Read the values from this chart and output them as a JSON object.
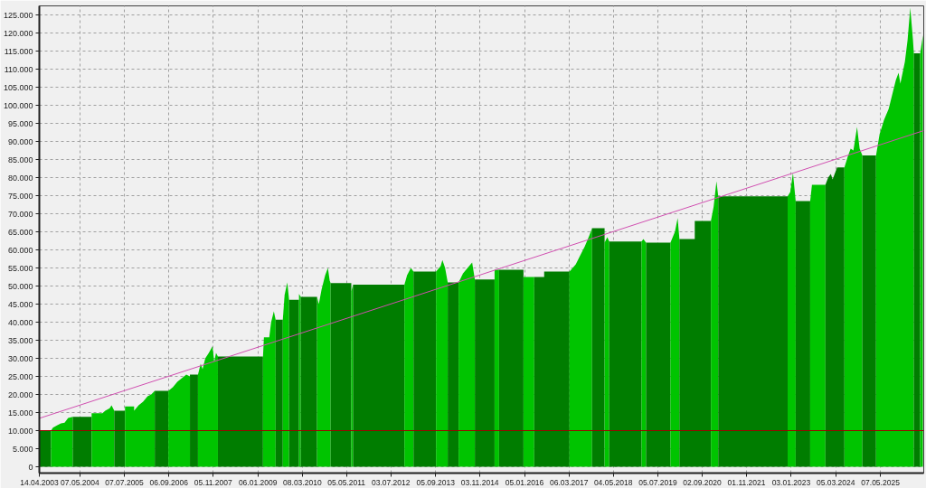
{
  "chart_data": {
    "type": "area",
    "xlim": [
      "2003-04-14",
      "2026-06-26"
    ],
    "ylim": [
      -1750,
      127500
    ],
    "xticks": [
      {
        "value": "2003-04-14",
        "label": "14.04.2003"
      },
      {
        "value": "2004-05-07",
        "label": "07.05.2004"
      },
      {
        "value": "2005-07-07",
        "label": "07.07.2005"
      },
      {
        "value": "2006-09-06",
        "label": "06.09.2006"
      },
      {
        "value": "2007-11-05",
        "label": "05.11.2007"
      },
      {
        "value": "2009-01-06",
        "label": "06.01.2009"
      },
      {
        "value": "2010-03-08",
        "label": "08.03.2010"
      },
      {
        "value": "2011-05-05",
        "label": "05.05.2011"
      },
      {
        "value": "2012-07-03",
        "label": "03.07.2012"
      },
      {
        "value": "2013-09-05",
        "label": "05.09.2013"
      },
      {
        "value": "2014-11-03",
        "label": "03.11.2014"
      },
      {
        "value": "2016-01-05",
        "label": "05.01.2016"
      },
      {
        "value": "2017-03-06",
        "label": "06.03.2017"
      },
      {
        "value": "2018-05-04",
        "label": "04.05.2018"
      },
      {
        "value": "2019-07-05",
        "label": "05.07.2019"
      },
      {
        "value": "2020-09-02",
        "label": "02.09.2020"
      },
      {
        "value": "2021-11-01",
        "label": "01.11.2021"
      },
      {
        "value": "2023-01-03",
        "label": "03.01.2023"
      },
      {
        "value": "2024-03-05",
        "label": "05.03.2024"
      },
      {
        "value": "2025-05-07",
        "label": "07.05.2025"
      }
    ],
    "yticks": [
      0,
      {
        "value": 5000,
        "label": "5.000"
      },
      {
        "value": 10000,
        "label": "10.000"
      },
      {
        "value": 15000,
        "label": "15.000"
      },
      {
        "value": 20000,
        "label": "20.000"
      },
      {
        "value": 25000,
        "label": "25.000"
      },
      {
        "value": 30000,
        "label": "30.000"
      },
      {
        "value": 35000,
        "label": "35.000"
      },
      {
        "value": 40000,
        "label": "40.000"
      },
      {
        "value": 45000,
        "label": "45.000"
      },
      {
        "value": 50000,
        "label": "50.000"
      },
      {
        "value": 55000,
        "label": "55.000"
      },
      {
        "value": 60000,
        "label": "60.000"
      },
      {
        "value": 65000,
        "label": "65.000"
      },
      {
        "value": 70000,
        "label": "70.000"
      },
      {
        "value": 75000,
        "label": "75.000"
      },
      {
        "value": 80000,
        "label": "80.000"
      },
      {
        "value": 85000,
        "label": "85.000"
      },
      {
        "value": 90000,
        "label": "90.000"
      },
      {
        "value": 95000,
        "label": "95.000"
      },
      {
        "value": 100000,
        "label": "100.000"
      },
      {
        "value": 105000,
        "label": "105.000"
      },
      {
        "value": 110000,
        "label": "110.000"
      },
      {
        "value": 115000,
        "label": "115.000"
      },
      {
        "value": 120000,
        "label": "120.000"
      },
      {
        "value": 125000,
        "label": "125.000"
      }
    ],
    "grid": true,
    "ref_lines": [
      {
        "axis": "y",
        "value": 10000,
        "color": "#a00000"
      }
    ],
    "series": [
      {
        "color": "#007d00",
        "x": [
          "2003-04-14",
          "2003-08-04"
        ],
        "values": [
          10000,
          10000
        ]
      },
      {
        "color": "#00c400",
        "x": [
          "2003-08-04",
          "2003-08-22",
          "2003-10-04",
          "2003-11-07",
          "2003-12-12",
          "2004-01-15",
          "2004-02-28"
        ],
        "values": [
          10000,
          10800,
          11500,
          12000,
          12200,
          13500,
          13800
        ]
      },
      {
        "color": "#007d00",
        "x": [
          "2004-02-28",
          "2004-08-27"
        ],
        "values": [
          13800,
          13800
        ]
      },
      {
        "color": "#00c400",
        "x": [
          "2004-08-27",
          "2004-12-09",
          "2005-01-04",
          "2005-02-16",
          "2005-03-06",
          "2005-04-01"
        ],
        "values": [
          14800,
          14800,
          15500,
          16200,
          17000,
          15500
        ]
      },
      {
        "color": "#007d00",
        "x": [
          "2005-04-01",
          "2005-07-13"
        ],
        "values": [
          15500,
          15500
        ]
      },
      {
        "color": "#00c400",
        "x": [
          "2005-07-13",
          "2005-10-08",
          "2005-10-08",
          "2005-11-20",
          "2006-01-02",
          "2006-02-14",
          "2006-03-21",
          "2006-04-24"
        ],
        "values": [
          16700,
          16700,
          15500,
          17000,
          18000,
          19500,
          20000,
          21000
        ]
      },
      {
        "color": "#007d00",
        "x": [
          "2006-04-24",
          "2006-09-01"
        ],
        "values": [
          21000,
          21000
        ]
      },
      {
        "color": "#00c400",
        "x": [
          "2006-09-01",
          "2006-10-14",
          "2006-11-26",
          "2007-01-08",
          "2007-02-20",
          "2007-03-27"
        ],
        "values": [
          21000,
          22000,
          23500,
          24500,
          25500,
          25000
        ]
      },
      {
        "color": "#007d00",
        "x": [
          "2007-03-27",
          "2007-06-12"
        ],
        "values": [
          25500,
          25500
        ]
      },
      {
        "color": "#00c400",
        "x": [
          "2007-06-12",
          "2007-07-08",
          "2007-07-26",
          "2007-08-21",
          "2007-09-24",
          "2007-10-29",
          "2007-11-15",
          "2007-12-02",
          "2007-12-20"
        ],
        "values": [
          25500,
          28500,
          27000,
          30000,
          31500,
          33300,
          29000,
          31500,
          30500
        ]
      },
      {
        "color": "#007d00",
        "x": [
          "2007-12-20",
          "2009-02-24"
        ],
        "values": [
          30500,
          30500
        ]
      },
      {
        "color": "#00c400",
        "x": [
          "2009-02-24",
          "2009-03-05",
          "2009-04-25",
          "2009-05-13",
          "2009-06-08",
          "2009-06-25"
        ],
        "values": [
          30500,
          35800,
          35800,
          40000,
          43000,
          40700
        ]
      },
      {
        "color": "#007d00",
        "x": [
          "2009-06-25",
          "2009-09-02"
        ],
        "values": [
          40700,
          40700
        ]
      },
      {
        "color": "#00c400",
        "x": [
          "2009-09-02",
          "2009-09-19",
          "2009-10-15",
          "2009-11-01"
        ],
        "values": [
          40700,
          47500,
          51000,
          46200
        ]
      },
      {
        "color": "#007d00",
        "x": [
          "2009-11-01",
          "2010-02-04"
        ],
        "values": [
          46200,
          46200
        ]
      },
      {
        "color": "#00c400",
        "x": [
          "2010-02-04",
          "2010-02-21"
        ],
        "values": [
          47800,
          47000
        ]
      },
      {
        "color": "#007d00",
        "x": [
          "2010-02-21",
          "2010-07-27"
        ],
        "values": [
          47000,
          47000
        ]
      },
      {
        "color": "#00c400",
        "x": [
          "2010-07-27",
          "2010-08-13",
          "2010-09-08",
          "2010-10-13",
          "2010-11-08",
          "2010-11-25",
          "2010-12-04"
        ],
        "values": [
          47000,
          45000,
          49000,
          53000,
          55000,
          51500,
          50800
        ]
      },
      {
        "color": "#007d00",
        "x": [
          "2010-12-04",
          "2011-06-20"
        ],
        "values": [
          50800,
          50800
        ]
      },
      {
        "color": "#00c400",
        "x": [
          "2011-06-20",
          "2011-07-07"
        ],
        "values": [
          48500,
          50400
        ]
      },
      {
        "color": "#007d00",
        "x": [
          "2011-07-07",
          "2012-11-10"
        ],
        "values": [
          50400,
          50400
        ]
      },
      {
        "color": "#00c400",
        "x": [
          "2012-11-10",
          "2012-12-06",
          "2013-01-11",
          "2013-02-05"
        ],
        "values": [
          50400,
          53000,
          55000,
          54000
        ]
      },
      {
        "color": "#007d00",
        "x": [
          "2013-02-05",
          "2013-09-09"
        ],
        "values": [
          54000,
          54000
        ]
      },
      {
        "color": "#00c400",
        "x": [
          "2013-09-09",
          "2013-10-23",
          "2013-11-09",
          "2013-12-05",
          "2013-12-30"
        ],
        "values": [
          54000,
          55500,
          57200,
          55000,
          51000
        ]
      },
      {
        "color": "#007d00",
        "x": [
          "2013-12-30",
          "2014-04-13"
        ],
        "values": [
          51000,
          51000
        ]
      },
      {
        "color": "#00c400",
        "x": [
          "2014-04-13",
          "2014-05-26",
          "2014-07-08",
          "2014-08-21",
          "2014-09-16"
        ],
        "values": [
          51000,
          53500,
          55000,
          56500,
          51800
        ]
      },
      {
        "color": "#007d00",
        "x": [
          "2014-09-16",
          "2015-03-24"
        ],
        "values": [
          51800,
          51800
        ]
      },
      {
        "color": "#00c400",
        "x": [
          "2015-03-24",
          "2015-05-06"
        ],
        "values": [
          54500,
          54500
        ]
      },
      {
        "color": "#007d00",
        "x": [
          "2015-05-06",
          "2015-12-26"
        ],
        "values": [
          54500,
          54500
        ]
      },
      {
        "color": "#00c400",
        "x": [
          "2015-12-26",
          "2016-04-07"
        ],
        "values": [
          52500,
          52500
        ]
      },
      {
        "color": "#007d00",
        "x": [
          "2016-04-07",
          "2016-07-11",
          "2016-07-11",
          "2017-03-11"
        ],
        "values": [
          52500,
          52500,
          54000,
          54000
        ]
      },
      {
        "color": "#00c400",
        "x": [
          "2017-03-11",
          "2017-05-10",
          "2017-06-22",
          "2017-08-05",
          "2017-09-17",
          "2017-10-13"
        ],
        "values": [
          54000,
          56000,
          58500,
          61000,
          64000,
          66000
        ]
      },
      {
        "color": "#007d00",
        "x": [
          "2017-10-13",
          "2018-02-10"
        ],
        "values": [
          66000,
          66000
        ]
      },
      {
        "color": "#00c400",
        "x": [
          "2018-02-10",
          "2018-03-08",
          "2018-03-26"
        ],
        "values": [
          62000,
          63500,
          62300
        ]
      },
      {
        "color": "#007d00",
        "x": [
          "2018-03-26",
          "2019-01-30"
        ],
        "values": [
          62300,
          62300
        ]
      },
      {
        "color": "#00c400",
        "x": [
          "2019-01-30",
          "2019-02-17",
          "2019-03-14"
        ],
        "values": [
          62300,
          63000,
          62000
        ]
      },
      {
        "color": "#007d00",
        "x": [
          "2019-03-14",
          "2019-11-03"
        ],
        "values": [
          62000,
          62000
        ]
      },
      {
        "color": "#00c400",
        "x": [
          "2019-11-03",
          "2019-12-16",
          "2020-01-11",
          "2020-01-28"
        ],
        "values": [
          62000,
          65000,
          68800,
          63000
        ]
      },
      {
        "color": "#007d00",
        "x": [
          "2020-01-28",
          "2020-06-23",
          "2020-06-23",
          "2020-11-25"
        ],
        "values": [
          63000,
          63000,
          68000,
          68000
        ]
      },
      {
        "color": "#00c400",
        "x": [
          "2020-11-25",
          "2020-12-21",
          "2021-01-17",
          "2021-02-03"
        ],
        "values": [
          68000,
          72000,
          79000,
          74800
        ]
      },
      {
        "color": "#007d00",
        "x": [
          "2021-02-03",
          "2022-11-30"
        ],
        "values": [
          74800,
          74800
        ]
      },
      {
        "color": "#00c400",
        "x": [
          "2022-11-30",
          "2022-12-25",
          "2023-01-20",
          "2023-02-15"
        ],
        "values": [
          74800,
          76000,
          81300,
          73500
        ]
      },
      {
        "color": "#007d00",
        "x": [
          "2023-02-15",
          "2023-07-04"
        ],
        "values": [
          73500,
          73500
        ]
      },
      {
        "color": "#00c400",
        "x": [
          "2023-07-04",
          "2023-07-21",
          "2023-11-27"
        ],
        "values": [
          73500,
          78000,
          78000
        ]
      },
      {
        "color": "#007d00",
        "x": [
          "2023-11-27",
          "2023-12-23",
          "2024-01-18",
          "2024-02-04",
          "2024-03-18",
          "2024-05-27"
        ],
        "values": [
          78000,
          80000,
          81000,
          79500,
          82800,
          82800
        ]
      },
      {
        "color": "#00c400",
        "x": [
          "2024-05-27",
          "2024-06-30",
          "2024-07-26",
          "2024-08-21",
          "2024-09-25",
          "2024-10-20",
          "2024-11-15"
        ],
        "values": [
          82800,
          86000,
          88000,
          87500,
          94000,
          88000,
          86100
        ]
      },
      {
        "color": "#007d00",
        "x": [
          "2024-11-15",
          "2025-03-26"
        ],
        "values": [
          86100,
          86100
        ]
      },
      {
        "color": "#00c400",
        "x": [
          "2025-03-26",
          "2025-04-29",
          "2025-06-11",
          "2025-07-25",
          "2025-09-06",
          "2025-10-02",
          "2025-10-28",
          "2025-11-14",
          "2025-12-27",
          "2026-01-22",
          "2026-02-17",
          "2026-03-15",
          "2026-03-23"
        ],
        "values": [
          86100,
          92000,
          96000,
          99000,
          104000,
          107000,
          109000,
          106000,
          112000,
          118000,
          127000,
          118000,
          114400
        ]
      },
      {
        "color": "#007d00",
        "x": [
          "2026-03-23",
          "2026-05-23"
        ],
        "values": [
          114400,
          114400
        ]
      },
      {
        "color": "#00c400",
        "x": [
          "2026-05-23",
          "2026-06-18"
        ],
        "values": [
          114400,
          119400
        ]
      },
      {
        "type": "line",
        "color": "#d04fb0",
        "x": [
          "2003-04-14",
          "2026-06-26"
        ],
        "values": [
          13400,
          93000
        ]
      }
    ]
  }
}
